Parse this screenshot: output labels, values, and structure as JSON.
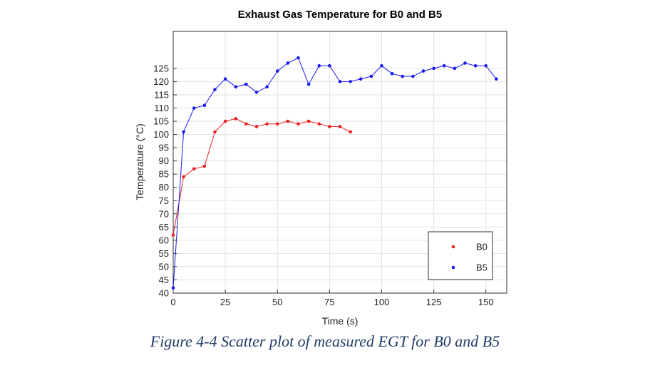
{
  "chart_data": {
    "type": "scatter",
    "title": "Exhaust Gas Temperature for B0 and B5",
    "xlabel": "Time (s)",
    "ylabel": "Temperature (°C)",
    "xlim": [
      0,
      160
    ],
    "ylim": [
      40,
      139
    ],
    "xticks": [
      0,
      25,
      50,
      75,
      100,
      125,
      150
    ],
    "yticks": [
      40,
      45,
      50,
      55,
      60,
      65,
      70,
      75,
      80,
      85,
      90,
      95,
      100,
      105,
      110,
      115,
      120,
      125
    ],
    "grid": true,
    "legend_position": "bottom-right",
    "series": [
      {
        "name": "B0",
        "color": "#e8201f",
        "x": [
          0,
          5,
          10,
          15,
          20,
          25,
          30,
          35,
          40,
          45,
          50,
          55,
          60,
          65,
          70,
          75,
          80,
          85
        ],
        "y": [
          62,
          84,
          87,
          88,
          101,
          105,
          106,
          104,
          103,
          104,
          104,
          105,
          104,
          105,
          104,
          103,
          103,
          101
        ]
      },
      {
        "name": "B5",
        "color": "#1a1aee",
        "x": [
          0,
          5,
          10,
          15,
          20,
          25,
          30,
          35,
          40,
          45,
          50,
          55,
          60,
          65,
          70,
          75,
          80,
          85,
          90,
          95,
          100,
          105,
          110,
          115,
          120,
          125,
          130,
          135,
          140,
          145,
          150,
          155
        ],
        "y": [
          42,
          101,
          110,
          111,
          117,
          121,
          118,
          119,
          116,
          118,
          124,
          127,
          129,
          119,
          126,
          126,
          120,
          120,
          121,
          122,
          126,
          123,
          122,
          122,
          124,
          125,
          126,
          125,
          127,
          126,
          126,
          121
        ]
      }
    ]
  },
  "caption": "Figure 4-4 Scatter plot of measured EGT for B0 and B5"
}
